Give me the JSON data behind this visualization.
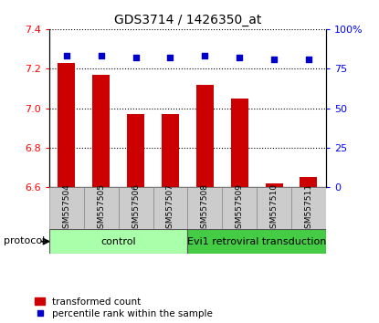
{
  "title": "GDS3714 / 1426350_at",
  "samples": [
    "GSM557504",
    "GSM557505",
    "GSM557506",
    "GSM557507",
    "GSM557508",
    "GSM557509",
    "GSM557510",
    "GSM557511"
  ],
  "transformed_counts": [
    7.23,
    7.17,
    6.97,
    6.97,
    7.12,
    7.05,
    6.62,
    6.65
  ],
  "percentile_ranks": [
    83,
    83,
    82,
    82,
    83,
    82,
    81,
    81
  ],
  "ylim_left": [
    6.6,
    7.4
  ],
  "ylim_right": [
    0,
    100
  ],
  "yticks_left": [
    6.6,
    6.8,
    7.0,
    7.2,
    7.4
  ],
  "yticks_right": [
    0,
    25,
    50,
    75,
    100
  ],
  "bar_color": "#cc0000",
  "dot_color": "#0000cc",
  "control_color": "#aaffaa",
  "evi1_color": "#44cc44",
  "bg_label_color": "#cccccc",
  "control_label": "control",
  "evi1_label": "Evi1 retroviral transduction",
  "protocol_label": "protocol",
  "legend_bar": "transformed count",
  "legend_dot": "percentile rank within the sample",
  "n_control": 4,
  "n_evi1": 4
}
